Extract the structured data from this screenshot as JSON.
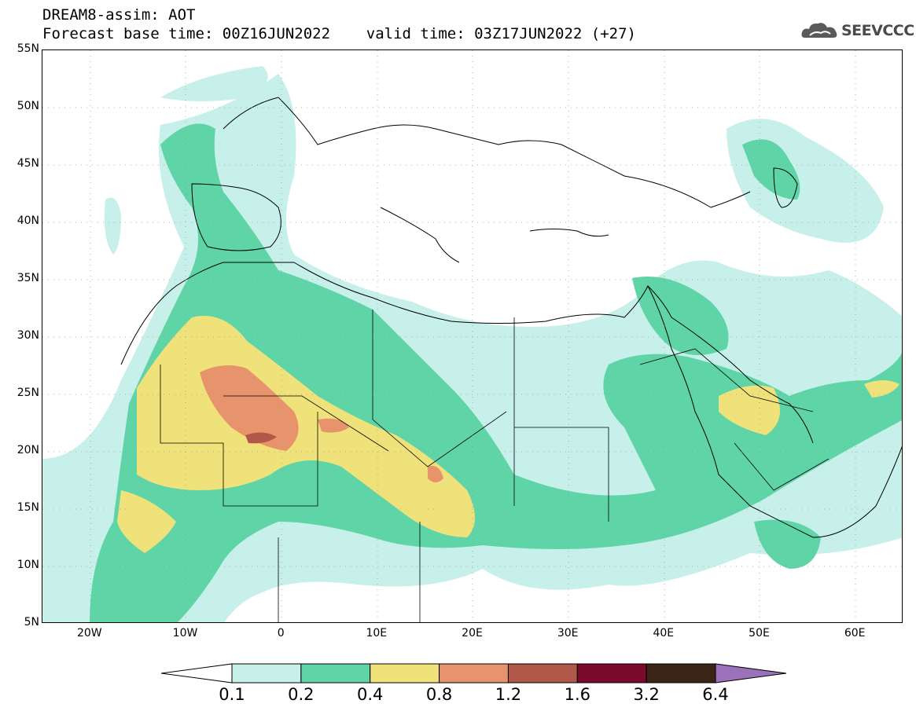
{
  "header": {
    "title_line1": "DREAM8-assim: AOT",
    "title_line2": "Forecast base time: 00Z16JUN2022    valid time: 03Z17JUN2022 (+27)",
    "logo_text": "SEEVCCC",
    "logo_icon": "cloud-icon"
  },
  "map": {
    "lat_labels": [
      "55N",
      "50N",
      "45N",
      "40N",
      "35N",
      "30N",
      "25N",
      "20N",
      "15N",
      "10N",
      "5N"
    ],
    "lon_labels": [
      "20W",
      "10W",
      "0",
      "10E",
      "20E",
      "30E",
      "40E",
      "50E",
      "60E"
    ],
    "gridlines": "dotted",
    "extent": {
      "lon": [
        -25,
        65
      ],
      "lat": [
        5,
        55
      ]
    }
  },
  "colorbar": {
    "labels": [
      "0.1",
      "0.2",
      "0.4",
      "0.8",
      "1.2",
      "1.6",
      "3.2",
      "6.4"
    ],
    "colors": [
      "#ffffff",
      "#c8f0ea",
      "#5fd4a7",
      "#f0e27a",
      "#e7936b",
      "#b0584a",
      "#7a0a2b",
      "#3c2416",
      "#9b71b9"
    ]
  }
}
